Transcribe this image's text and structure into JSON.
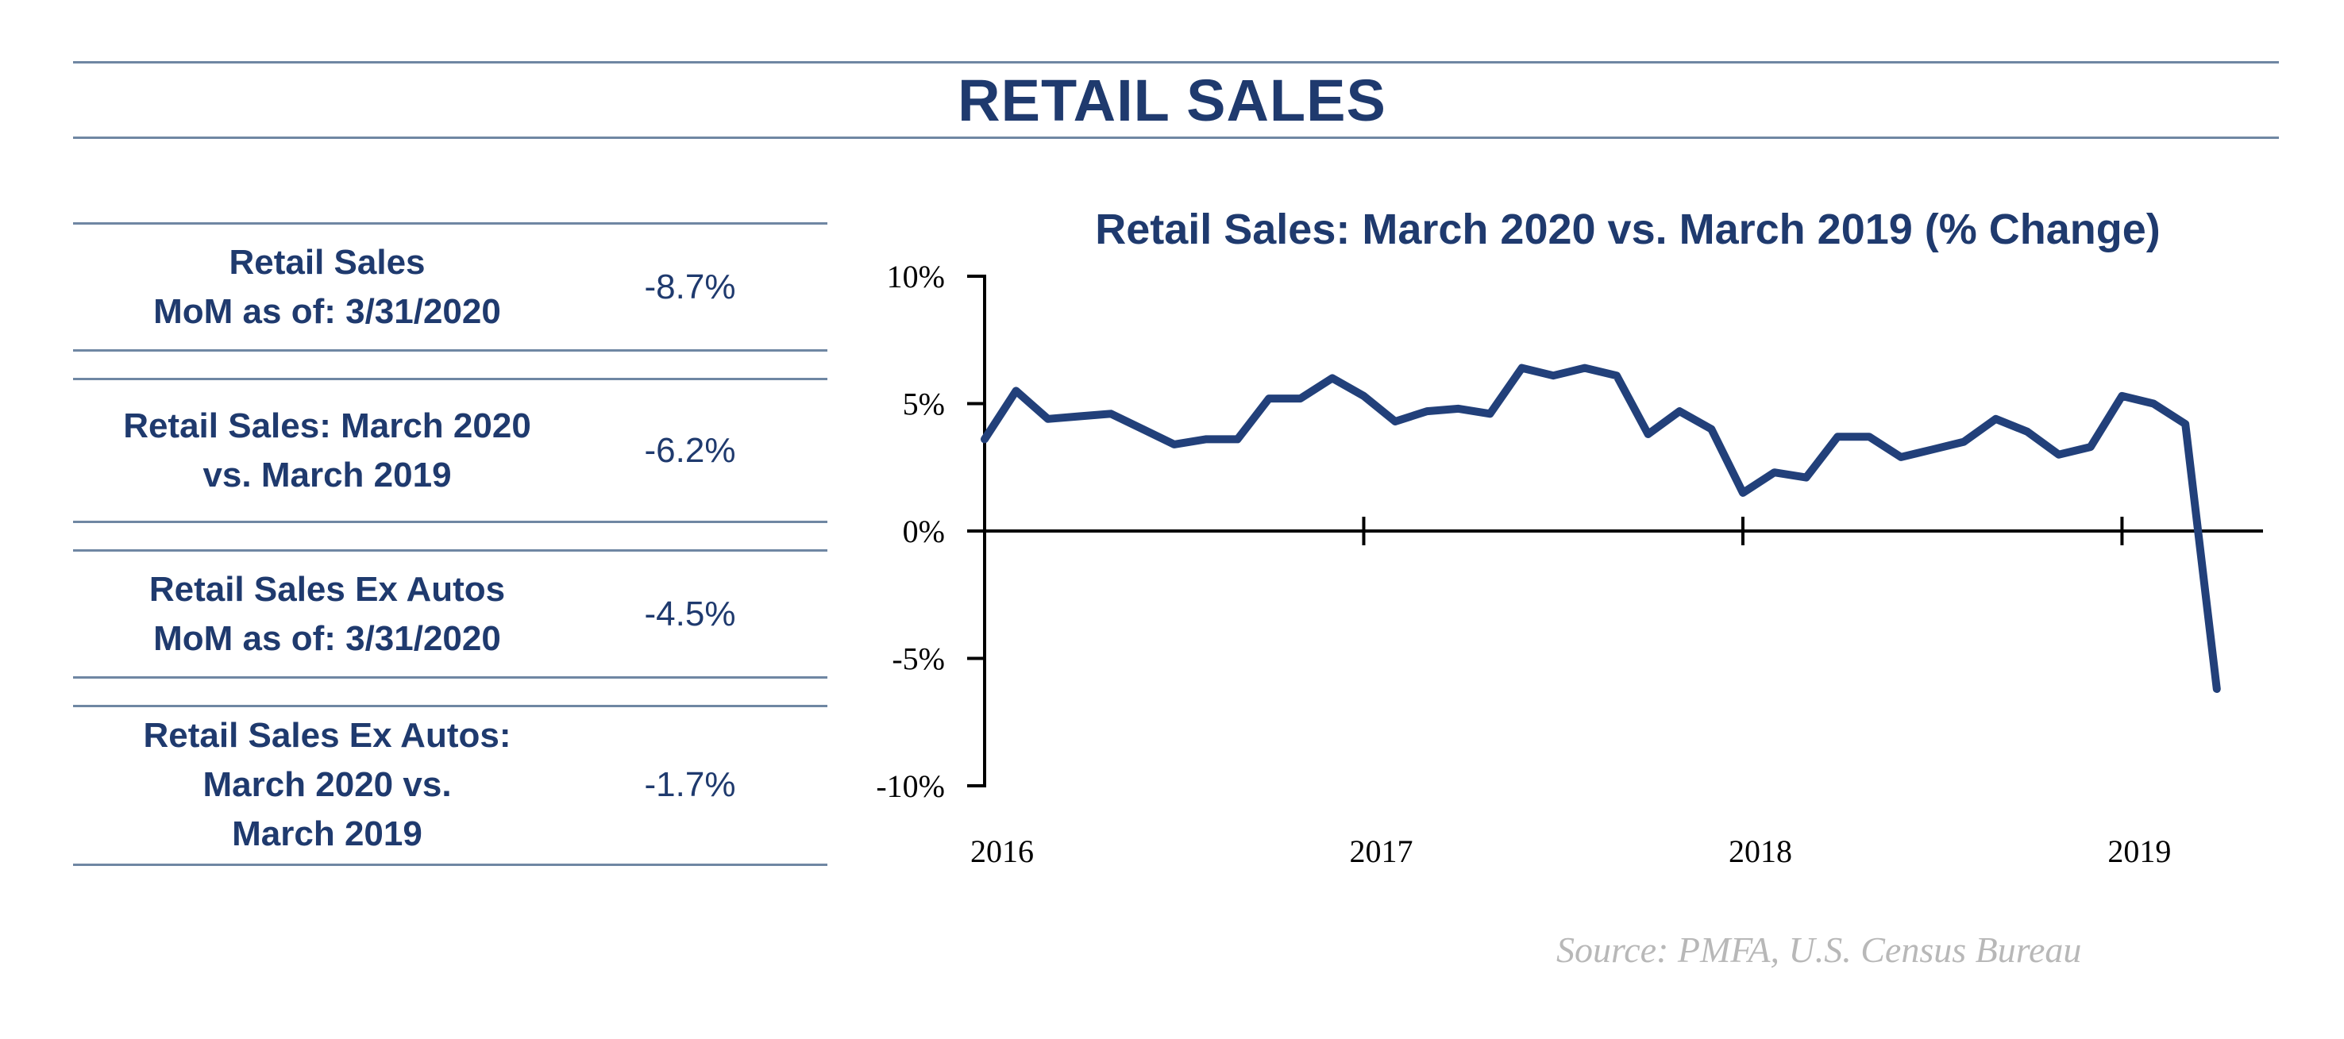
{
  "page": {
    "title": "RETAIL SALES"
  },
  "stats": [
    {
      "label": "Retail Sales\nMoM as of: 3/31/2020",
      "value": "-8.7%"
    },
    {
      "label": "Retail Sales: March 2020\nvs. March 2019",
      "value": "-6.2%"
    },
    {
      "label": "Retail Sales Ex Autos\nMoM as of: 3/31/2020",
      "value": "-4.5%"
    },
    {
      "label": "Retail Sales Ex Autos:\nMarch 2020 vs.\nMarch 2019",
      "value": "-1.7%"
    }
  ],
  "colors": {
    "primary": "#1f3a6e",
    "rule": "#6f87a3",
    "source": "#b8b8b8",
    "line": "#22407a"
  },
  "chart_data": {
    "type": "line",
    "title": "Retail Sales: March 2020 vs. March 2019 (% Change)",
    "xlabel": "",
    "ylabel": "",
    "ylim": [
      -10,
      10
    ],
    "yticks": [
      10,
      5,
      0,
      -5,
      -10
    ],
    "ytick_labels": [
      "10%",
      "5%",
      "0%",
      "-5%",
      "-10%"
    ],
    "xlim": [
      2016.0,
      2019.33
    ],
    "xticks": [
      2016,
      2017,
      2018,
      2019
    ],
    "xtick_labels": [
      "2016",
      "2017",
      "2018",
      "2019"
    ],
    "grid": false,
    "series": [
      {
        "x": [
          2016.0,
          2016.083,
          2016.167,
          2016.25,
          2016.333,
          2016.417,
          2016.5,
          2016.583,
          2016.667,
          2016.75,
          2016.833,
          2016.917,
          2017.0,
          2017.083,
          2017.167,
          2017.25,
          2017.333,
          2017.417,
          2017.5,
          2017.583,
          2017.667,
          2017.75,
          2017.833,
          2017.917,
          2018.0,
          2018.083,
          2018.167,
          2018.25,
          2018.333,
          2018.417,
          2018.5,
          2018.583,
          2018.667,
          2018.75,
          2018.833,
          2018.917,
          2019.0,
          2019.083,
          2019.167,
          2019.25
        ],
        "values": [
          3.6,
          5.5,
          4.4,
          4.5,
          4.6,
          4.0,
          3.4,
          3.6,
          3.6,
          5.2,
          5.2,
          6.0,
          5.3,
          4.3,
          4.7,
          4.8,
          4.6,
          6.4,
          6.1,
          6.4,
          6.1,
          3.8,
          4.7,
          4.0,
          1.5,
          2.3,
          2.1,
          3.7,
          3.7,
          2.9,
          3.2,
          3.5,
          4.4,
          3.9,
          3.0,
          3.3,
          5.3,
          5.0,
          4.2,
          -6.2
        ]
      }
    ]
  },
  "source": {
    "text": "Source:  PMFA,  U.S. Census Bureau"
  }
}
